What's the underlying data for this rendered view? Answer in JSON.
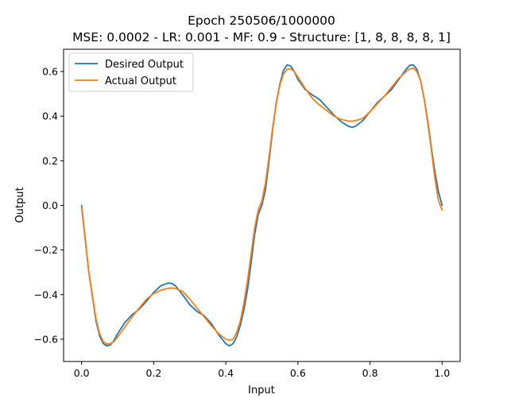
{
  "chart_data": {
    "type": "line",
    "title": "Epoch 250506/1000000",
    "subtitle": "MSE: 0.0002 - LR: 0.001 - MF: 0.9 - Structure: [1, 8, 8, 8, 8, 1]",
    "xlabel": "Input",
    "ylabel": "Output",
    "xlim": [
      -0.05,
      1.05
    ],
    "ylim": [
      -0.7,
      0.7
    ],
    "xticks": [
      0.0,
      0.2,
      0.4,
      0.6,
      0.8,
      1.0
    ],
    "xtick_labels": [
      "0.0",
      "0.2",
      "0.4",
      "0.6",
      "0.8",
      "1.0"
    ],
    "yticks": [
      -0.6,
      -0.4,
      -0.2,
      0.0,
      0.2,
      0.4,
      0.6
    ],
    "ytick_labels": [
      "−0.6",
      "−0.4",
      "−0.2",
      "0.0",
      "0.2",
      "0.4",
      "0.6"
    ],
    "grid": false,
    "legend_position": "top-left",
    "series": [
      {
        "name": "Desired Output",
        "color": "#1f77b4",
        "x": [
          0.0,
          0.02,
          0.04,
          0.05,
          0.06,
          0.07,
          0.08,
          0.09,
          0.1,
          0.12,
          0.14,
          0.16,
          0.18,
          0.2,
          0.22,
          0.24,
          0.25,
          0.26,
          0.28,
          0.3,
          0.32,
          0.34,
          0.36,
          0.38,
          0.4,
          0.41,
          0.42,
          0.43,
          0.44,
          0.45,
          0.46,
          0.47,
          0.48,
          0.49,
          0.5,
          0.51,
          0.52,
          0.53,
          0.54,
          0.55,
          0.56,
          0.57,
          0.58,
          0.59,
          0.6,
          0.62,
          0.64,
          0.66,
          0.68,
          0.7,
          0.72,
          0.74,
          0.75,
          0.76,
          0.78,
          0.8,
          0.82,
          0.84,
          0.86,
          0.88,
          0.9,
          0.91,
          0.92,
          0.93,
          0.94,
          0.95,
          0.96,
          0.97,
          0.98,
          0.99,
          1.0
        ],
        "y": [
          0.0,
          -0.3,
          -0.52,
          -0.585,
          -0.62,
          -0.63,
          -0.625,
          -0.605,
          -0.575,
          -0.525,
          -0.49,
          -0.465,
          -0.43,
          -0.39,
          -0.36,
          -0.348,
          -0.35,
          -0.36,
          -0.4,
          -0.445,
          -0.475,
          -0.495,
          -0.53,
          -0.58,
          -0.62,
          -0.63,
          -0.62,
          -0.59,
          -0.54,
          -0.47,
          -0.38,
          -0.26,
          -0.13,
          -0.04,
          0.0,
          0.07,
          0.2,
          0.34,
          0.46,
          0.545,
          0.605,
          0.63,
          0.625,
          0.6,
          0.565,
          0.52,
          0.495,
          0.475,
          0.44,
          0.405,
          0.375,
          0.355,
          0.35,
          0.355,
          0.38,
          0.42,
          0.46,
          0.49,
          0.52,
          0.565,
          0.61,
          0.628,
          0.63,
          0.61,
          0.56,
          0.48,
          0.38,
          0.26,
          0.15,
          0.06,
          0.0
        ]
      },
      {
        "name": "Actual Output",
        "color": "#ff7f0e",
        "x": [
          0.0,
          0.02,
          0.04,
          0.05,
          0.06,
          0.07,
          0.08,
          0.09,
          0.1,
          0.12,
          0.14,
          0.16,
          0.18,
          0.2,
          0.22,
          0.24,
          0.25,
          0.26,
          0.28,
          0.3,
          0.32,
          0.34,
          0.36,
          0.38,
          0.4,
          0.41,
          0.42,
          0.43,
          0.44,
          0.45,
          0.46,
          0.47,
          0.48,
          0.49,
          0.5,
          0.51,
          0.52,
          0.53,
          0.54,
          0.55,
          0.56,
          0.57,
          0.58,
          0.59,
          0.6,
          0.62,
          0.64,
          0.66,
          0.68,
          0.7,
          0.72,
          0.74,
          0.75,
          0.76,
          0.78,
          0.8,
          0.82,
          0.84,
          0.86,
          0.88,
          0.9,
          0.91,
          0.92,
          0.93,
          0.94,
          0.95,
          0.96,
          0.97,
          0.98,
          0.99,
          1.0
        ],
        "y": [
          -0.01,
          -0.3,
          -0.51,
          -0.575,
          -0.61,
          -0.622,
          -0.62,
          -0.61,
          -0.59,
          -0.545,
          -0.5,
          -0.46,
          -0.42,
          -0.395,
          -0.38,
          -0.372,
          -0.37,
          -0.372,
          -0.385,
          -0.42,
          -0.46,
          -0.5,
          -0.54,
          -0.575,
          -0.6,
          -0.605,
          -0.6,
          -0.57,
          -0.52,
          -0.44,
          -0.34,
          -0.22,
          -0.1,
          -0.02,
          0.02,
          0.1,
          0.22,
          0.35,
          0.46,
          0.54,
          0.59,
          0.61,
          0.612,
          0.6,
          0.575,
          0.525,
          0.48,
          0.45,
          0.425,
          0.4,
          0.385,
          0.378,
          0.378,
          0.38,
          0.39,
          0.42,
          0.455,
          0.49,
          0.53,
          0.57,
          0.6,
          0.612,
          0.615,
          0.6,
          0.56,
          0.48,
          0.37,
          0.25,
          0.12,
          0.02,
          -0.02
        ]
      }
    ]
  }
}
